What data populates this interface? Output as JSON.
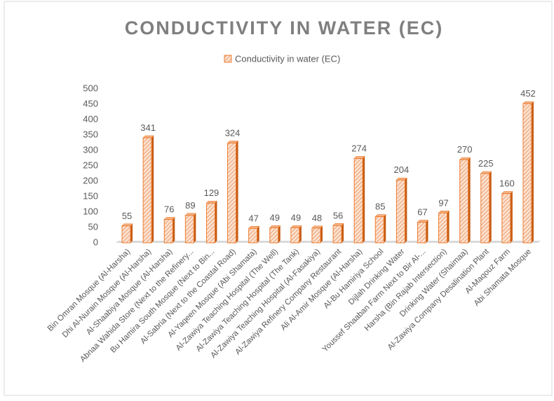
{
  "chart_data": {
    "type": "bar",
    "title": "CONDUCTIVITY IN WATER (EC)",
    "categories": [
      "Bin Omran Mosque (Al-Harsha)",
      "Dhi Al-Nurain Mosque (Al-Harsha)",
      "Al-Shaabiya Mosque (Al-Harsha)",
      "Abnaa Wahida Store (Next to the Refinery...",
      "Bu Hamira South Mosque (Next to Bin...",
      "Al-Sabria (Next to the Coastal Road)",
      "Al-Yaqeen Mosque (Abi Shamata)",
      "Al-Zawiya Teaching Hospital (The Well)",
      "Al-Zawiya Teaching Hospital (The Tank)",
      "Al-Zawiya Teaching Hospital (Al-Fasakiya)",
      "Al-Zawiya Refinery Company Restaurant",
      "Ali Al-Amir Mosque (Al-Harsha)",
      "Al-Bu Hamiriya School",
      "Dijlah Drinking Water",
      "Youssef Shaaban Farm Next to Bir Al-...",
      "Harsha (Bin Rajab Intersection)",
      "Drinking Water (Shaimaa)",
      "Al-Zawiya Company Desalination Plant",
      "Al-Maqouz Farm",
      "Abi Shamata Mosque"
    ],
    "series": [
      {
        "name": "Conductivity in water (EC)",
        "color": "#ed7d31",
        "values": [
          55,
          341,
          76,
          89,
          129,
          324,
          47,
          49,
          49,
          48,
          56,
          274,
          85,
          204,
          67,
          97,
          270,
          225,
          160,
          452
        ]
      }
    ],
    "ylim": [
      0,
      500
    ],
    "yticks": [
      0,
      50,
      100,
      150,
      200,
      250,
      300,
      350,
      400,
      450,
      500
    ],
    "grid": false,
    "legend": "top"
  }
}
